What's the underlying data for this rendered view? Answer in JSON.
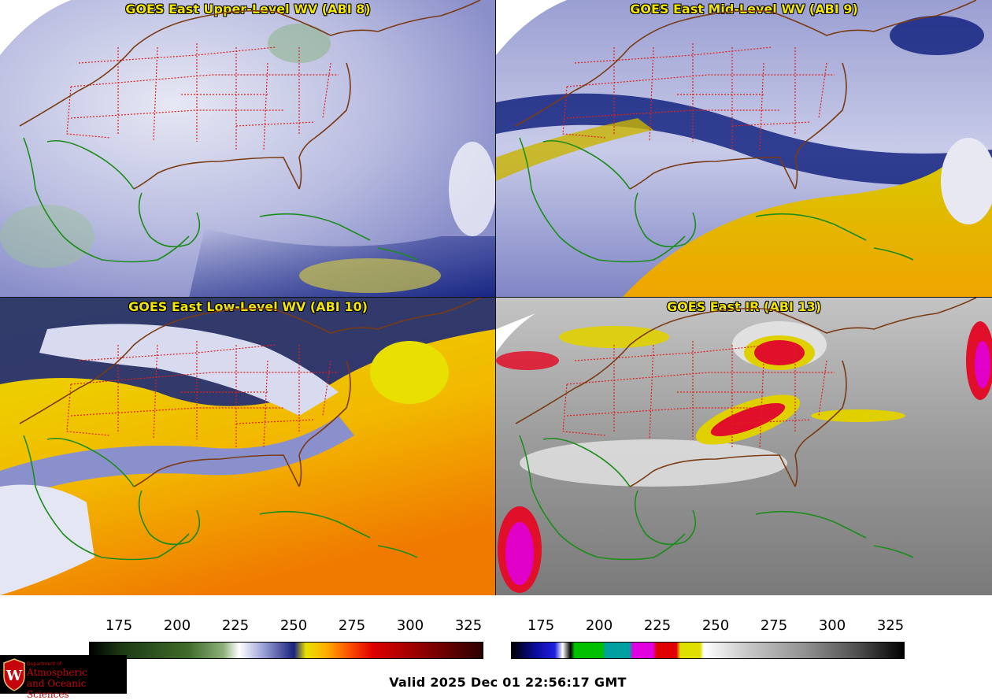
{
  "panels": [
    {
      "title": "GOES East Upper-Level WV (ABI 8)"
    },
    {
      "title": "GOES East Mid-Level WV (ABI 9)"
    },
    {
      "title": "GOES East Low-Level WV (ABI 10)"
    },
    {
      "title": "GOES East IR (ABI 13)"
    }
  ],
  "colorbars": {
    "wv": {
      "ticks": [
        "175",
        "200",
        "225",
        "250",
        "275",
        "300",
        "325"
      ]
    },
    "ir": {
      "ticks": [
        "175",
        "200",
        "225",
        "250",
        "275",
        "300",
        "325"
      ]
    }
  },
  "valid_time": "Valid 2025 Dec 01 22:56:17 GMT",
  "logo": {
    "department": "Department of",
    "line1": "Atmospheric",
    "line2": "and Oceanic Sciences",
    "mark": "W"
  },
  "colors": {
    "state_borders": "#e0201c",
    "coastline_land": "#7a3a14",
    "coastline_sea": "#1c8c1c",
    "title_text": "#f2e600"
  }
}
